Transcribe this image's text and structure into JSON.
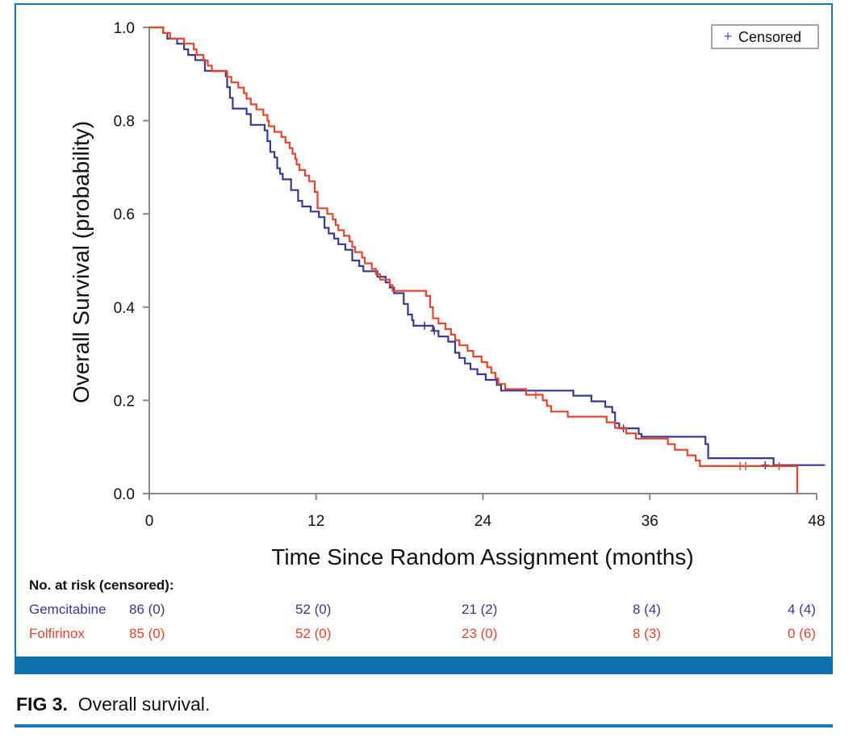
{
  "colors": {
    "gemcitabine": "#3a3795",
    "folfirinox": "#e8452d",
    "frame": "#1a78b4",
    "axis": "#888888"
  },
  "caption": {
    "label": "FIG 3.",
    "text": "Overall survival."
  },
  "risk_table": {
    "title": "No. at risk (censored):",
    "rows": [
      {
        "name": "Gemcitabine",
        "values": [
          "86 (0)",
          "52 (0)",
          "21 (2)",
          "8 (4)",
          "4 (4)"
        ]
      },
      {
        "name": "Folfirinox",
        "values": [
          "85 (0)",
          "52 (0)",
          "23 (0)",
          "8 (3)",
          "0 (6)"
        ]
      }
    ]
  },
  "chart_data": {
    "type": "line",
    "xlabel": "Time Since Random Assignment (months)",
    "ylabel": "Overall Survival (probability)",
    "xlim": [
      0,
      48
    ],
    "ylim": [
      0,
      1.0
    ],
    "xticks": [
      0,
      12,
      24,
      36,
      48
    ],
    "yticks": [
      "0.0",
      "0.2",
      "0.4",
      "0.6",
      "0.8",
      "1.0"
    ],
    "legend": {
      "label": "Censored",
      "marker": "+",
      "placement": "top-right"
    },
    "series": [
      {
        "name": "Gemcitabine",
        "step": [
          [
            0,
            1.0
          ],
          [
            1,
            0.988
          ],
          [
            1.3,
            0.976
          ],
          [
            2,
            0.965
          ],
          [
            2.5,
            0.953
          ],
          [
            2.8,
            0.941
          ],
          [
            3.3,
            0.93
          ],
          [
            4,
            0.907
          ],
          [
            5.5,
            0.895
          ],
          [
            5.6,
            0.872
          ],
          [
            5.8,
            0.849
          ],
          [
            6,
            0.826
          ],
          [
            7,
            0.814
          ],
          [
            7.3,
            0.791
          ],
          [
            8.3,
            0.779
          ],
          [
            8.5,
            0.756
          ],
          [
            8.7,
            0.733
          ],
          [
            9,
            0.721
          ],
          [
            9.2,
            0.698
          ],
          [
            9.4,
            0.686
          ],
          [
            9.6,
            0.674
          ],
          [
            10.2,
            0.651
          ],
          [
            10.7,
            0.628
          ],
          [
            11,
            0.616
          ],
          [
            11.6,
            0.605
          ],
          [
            12.2,
            0.593
          ],
          [
            12.6,
            0.57
          ],
          [
            12.9,
            0.558
          ],
          [
            13.3,
            0.547
          ],
          [
            13.6,
            0.535
          ],
          [
            14.1,
            0.523
          ],
          [
            14.6,
            0.5
          ],
          [
            15.1,
            0.488
          ],
          [
            15.4,
            0.477
          ],
          [
            16.4,
            0.465
          ],
          [
            17,
            0.453
          ],
          [
            17.3,
            0.442
          ],
          [
            17.6,
            0.43
          ],
          [
            18.3,
            0.407
          ],
          [
            18.6,
            0.384
          ],
          [
            18.9,
            0.372
          ],
          [
            19,
            0.36
          ],
          [
            20.4,
            0.349
          ],
          [
            20.8,
            0.337
          ],
          [
            21.5,
            0.326
          ],
          [
            22,
            0.302
          ],
          [
            22.3,
            0.291
          ],
          [
            22.7,
            0.279
          ],
          [
            23.1,
            0.267
          ],
          [
            23.6,
            0.256
          ],
          [
            24.2,
            0.244
          ],
          [
            25,
            0.233
          ],
          [
            25.3,
            0.221
          ],
          [
            27.9,
            0.221
          ],
          [
            30.5,
            0.21
          ],
          [
            31.8,
            0.198
          ],
          [
            32.8,
            0.186
          ],
          [
            33.3,
            0.174
          ],
          [
            33.5,
            0.151
          ],
          [
            33.8,
            0.14
          ],
          [
            35.2,
            0.128
          ],
          [
            35.4,
            0.122
          ],
          [
            38.5,
            0.122
          ],
          [
            40,
            0.106
          ],
          [
            40.2,
            0.076
          ],
          [
            44.9,
            0.061
          ],
          [
            48.6,
            0.061
          ]
        ],
        "censored": [
          [
            19.8,
            0.36
          ],
          [
            20.5,
            0.349
          ],
          [
            34.1,
            0.14
          ],
          [
            44.3,
            0.061
          ]
        ]
      },
      {
        "name": "Folfirinox",
        "step": [
          [
            0,
            1.0
          ],
          [
            1,
            0.988
          ],
          [
            1.5,
            0.976
          ],
          [
            2.5,
            0.965
          ],
          [
            3.2,
            0.953
          ],
          [
            3.4,
            0.941
          ],
          [
            3.9,
            0.929
          ],
          [
            4.2,
            0.918
          ],
          [
            4.5,
            0.906
          ],
          [
            5.6,
            0.894
          ],
          [
            5.9,
            0.882
          ],
          [
            6.4,
            0.871
          ],
          [
            6.8,
            0.859
          ],
          [
            7,
            0.847
          ],
          [
            7.3,
            0.835
          ],
          [
            7.7,
            0.824
          ],
          [
            8.2,
            0.812
          ],
          [
            8.5,
            0.8
          ],
          [
            8.6,
            0.788
          ],
          [
            9,
            0.776
          ],
          [
            9.5,
            0.765
          ],
          [
            9.8,
            0.753
          ],
          [
            10.1,
            0.741
          ],
          [
            10.3,
            0.729
          ],
          [
            10.5,
            0.718
          ],
          [
            10.6,
            0.706
          ],
          [
            10.8,
            0.694
          ],
          [
            11.2,
            0.682
          ],
          [
            11.5,
            0.67
          ],
          [
            11.9,
            0.647
          ],
          [
            12.1,
            0.612
          ],
          [
            12.8,
            0.6
          ],
          [
            13.2,
            0.588
          ],
          [
            13.4,
            0.576
          ],
          [
            13.6,
            0.565
          ],
          [
            14,
            0.553
          ],
          [
            14.4,
            0.541
          ],
          [
            14.6,
            0.529
          ],
          [
            14.8,
            0.518
          ],
          [
            15.3,
            0.506
          ],
          [
            15.5,
            0.494
          ],
          [
            16,
            0.482
          ],
          [
            16.3,
            0.471
          ],
          [
            16.6,
            0.459
          ],
          [
            17.3,
            0.447
          ],
          [
            17.5,
            0.435
          ],
          [
            19.9,
            0.424
          ],
          [
            20.2,
            0.4
          ],
          [
            20.4,
            0.376
          ],
          [
            20.8,
            0.365
          ],
          [
            21.3,
            0.353
          ],
          [
            21.7,
            0.341
          ],
          [
            22,
            0.329
          ],
          [
            22.3,
            0.318
          ],
          [
            22.9,
            0.306
          ],
          [
            23.3,
            0.294
          ],
          [
            23.9,
            0.282
          ],
          [
            24.3,
            0.271
          ],
          [
            24.6,
            0.259
          ],
          [
            24.9,
            0.247
          ],
          [
            25.1,
            0.235
          ],
          [
            25.6,
            0.224
          ],
          [
            27.1,
            0.212
          ],
          [
            28.3,
            0.2
          ],
          [
            28.6,
            0.188
          ],
          [
            28.9,
            0.176
          ],
          [
            30.1,
            0.165
          ],
          [
            32.9,
            0.153
          ],
          [
            33.5,
            0.141
          ],
          [
            34.3,
            0.129
          ],
          [
            35,
            0.118
          ],
          [
            37.3,
            0.106
          ],
          [
            37.8,
            0.094
          ],
          [
            38.7,
            0.082
          ],
          [
            39.3,
            0.071
          ],
          [
            39.6,
            0.059
          ],
          [
            46.5,
            0.059
          ],
          [
            46.6,
            0.0
          ]
        ],
        "censored": [
          [
            27.8,
            0.212
          ],
          [
            42.5,
            0.059
          ],
          [
            42.9,
            0.059
          ],
          [
            45.3,
            0.059
          ]
        ]
      }
    ]
  }
}
